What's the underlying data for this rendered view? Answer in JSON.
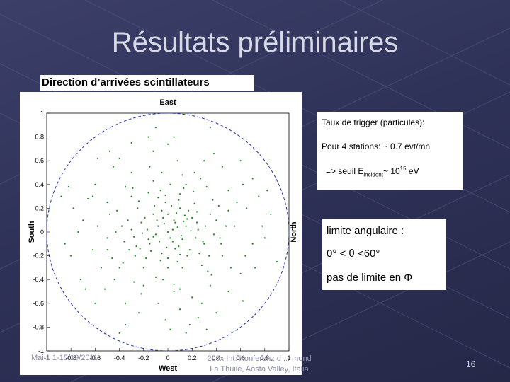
{
  "slide": {
    "title": "Résultats préliminaires",
    "subtitle": "Direction d’arrivées scintillateurs",
    "trigger_box": {
      "heading": "Taux de trigger (particules):",
      "stations_line": "Pour 4 stations: ~ 0.7 evt/mn",
      "seuil_prefix": "=> seuil E",
      "seuil_sub": "incident",
      "seuil_mid": "~ 10",
      "seuil_sup": "15",
      "seuil_unit": " eV"
    },
    "limits_box": {
      "line1": "limite angulaire :",
      "line2": "0° < θ <60°",
      "line3": "pas de limite en Φ"
    },
    "footer_date": "Mai 1 1-15/19/2011",
    "footer_conference": [
      "200x Int. Konferenz d ... mond",
      "La Thuile, Aosta Valley, Italia"
    ],
    "slide_number": "16"
  },
  "chart_data": {
    "type": "scatter",
    "title": "East",
    "xlabel": "West",
    "ylabel_left": "South",
    "ylabel_right": "North",
    "xlim": [
      -1,
      1
    ],
    "ylim": [
      -1,
      1
    ],
    "x_ticks": [
      "-1",
      "-0.8",
      "-0.6",
      "-0.4",
      "-0.2",
      "0",
      "0.2",
      "0.4",
      "0.6",
      "0.8",
      "1"
    ],
    "y_ticks": [
      "1",
      "0.8",
      "0.6",
      "0.4",
      "0.2",
      "0",
      "-0.2",
      "-0.4",
      "-0.6",
      "-0.8",
      "-1"
    ],
    "grid": false,
    "boundary": "unit circle (dashed)",
    "points_color": "#1e8a1e",
    "points": [
      [
        0.0,
        0.0
      ],
      [
        0.05,
        0.1
      ],
      [
        -0.08,
        0.05
      ],
      [
        0.12,
        -0.06
      ],
      [
        -0.15,
        -0.1
      ],
      [
        0.2,
        0.12
      ],
      [
        -0.05,
        -0.18
      ],
      [
        0.1,
        0.2
      ],
      [
        -0.22,
        0.08
      ],
      [
        0.18,
        -0.15
      ],
      [
        0.02,
        -0.05
      ],
      [
        -0.12,
        0.15
      ],
      [
        0.25,
        0.02
      ],
      [
        -0.02,
        0.25
      ],
      [
        0.08,
        -0.25
      ],
      [
        -0.28,
        -0.04
      ],
      [
        0.15,
        0.05
      ],
      [
        -0.1,
        -0.02
      ],
      [
        0.06,
        0.08
      ],
      [
        -0.04,
        0.12
      ],
      [
        0.3,
        -0.1
      ],
      [
        -0.18,
        -0.22
      ],
      [
        0.22,
        0.24
      ],
      [
        -0.25,
        0.2
      ],
      [
        0.0,
        -0.3
      ],
      [
        0.1,
        0.32
      ],
      [
        -0.32,
        -0.15
      ],
      [
        0.35,
        0.15
      ],
      [
        -0.06,
        0.35
      ],
      [
        0.28,
        -0.28
      ],
      [
        -0.3,
        0.3
      ],
      [
        0.04,
        0.02
      ],
      [
        -0.07,
        -0.08
      ],
      [
        0.13,
        0.09
      ],
      [
        -0.11,
        0.22
      ],
      [
        0.16,
        -0.2
      ],
      [
        -0.2,
        -0.3
      ],
      [
        0.24,
        0.08
      ],
      [
        -0.26,
        -0.12
      ],
      [
        0.09,
        -0.12
      ],
      [
        0.38,
        -0.02
      ],
      [
        -0.38,
        0.05
      ],
      [
        0.02,
        0.4
      ],
      [
        -0.04,
        -0.4
      ],
      [
        0.42,
        0.22
      ],
      [
        -0.4,
        -0.3
      ],
      [
        0.32,
        0.38
      ],
      [
        -0.35,
        0.38
      ],
      [
        0.36,
        -0.36
      ],
      [
        -0.28,
        -0.42
      ],
      [
        0.45,
        -0.2
      ],
      [
        -0.48,
        0.15
      ],
      [
        0.12,
        0.48
      ],
      [
        0.05,
        -0.5
      ],
      [
        0.5,
        0.35
      ],
      [
        -0.5,
        -0.05
      ],
      [
        0.55,
        0.05
      ],
      [
        -0.15,
        0.55
      ],
      [
        0.2,
        -0.55
      ],
      [
        -0.55,
        -0.3
      ],
      [
        0.6,
        -0.35
      ],
      [
        -0.6,
        0.4
      ],
      [
        0.3,
        0.6
      ],
      [
        -0.35,
        -0.6
      ],
      [
        0.65,
        0.2
      ],
      [
        -0.62,
        -0.15
      ],
      [
        0.1,
        -0.65
      ],
      [
        -0.12,
        0.68
      ],
      [
        0.7,
        -0.1
      ],
      [
        -0.7,
        0.1
      ],
      [
        0.45,
        0.55
      ],
      [
        -0.45,
        0.55
      ],
      [
        0.5,
        -0.5
      ],
      [
        -0.52,
        -0.48
      ],
      [
        0.75,
        0.3
      ],
      [
        -0.72,
        -0.4
      ],
      [
        0.25,
        -0.72
      ],
      [
        -0.3,
        0.75
      ],
      [
        0.8,
        -0.05
      ],
      [
        -0.78,
        0.2
      ],
      [
        0.05,
        0.8
      ],
      [
        0.02,
        -0.82
      ],
      [
        0.6,
        0.6
      ],
      [
        -0.58,
        0.62
      ],
      [
        0.62,
        -0.58
      ],
      [
        -0.6,
        -0.6
      ],
      [
        0.85,
        0.15
      ],
      [
        -0.85,
        -0.1
      ],
      [
        0.15,
        -0.85
      ],
      [
        -0.1,
        0.88
      ],
      [
        0.9,
        -0.25
      ],
      [
        -0.88,
        0.3
      ],
      [
        0.35,
        0.88
      ],
      [
        -0.4,
        -0.85
      ],
      [
        0.07,
        0.16
      ],
      [
        -0.16,
        -0.06
      ],
      [
        0.19,
        0.01
      ],
      [
        -0.01,
        -0.13
      ],
      [
        0.11,
        -0.03
      ],
      [
        -0.09,
        0.1
      ],
      [
        0.14,
        0.14
      ],
      [
        -0.14,
        -0.16
      ],
      [
        0.03,
        0.22
      ],
      [
        -0.21,
        -0.01
      ],
      [
        0.23,
        -0.05
      ],
      [
        0.0,
        0.15
      ],
      [
        -0.06,
        -0.24
      ],
      [
        0.17,
        0.18
      ],
      [
        -0.19,
        0.12
      ],
      [
        0.26,
        -0.18
      ],
      [
        -0.24,
        0.26
      ],
      [
        0.09,
        0.27
      ],
      [
        -0.27,
        -0.2
      ],
      [
        0.31,
        0.05
      ],
      [
        -0.08,
        0.29
      ],
      [
        0.12,
        -0.3
      ],
      [
        -0.33,
        0.1
      ],
      [
        0.34,
        -0.2
      ],
      [
        -0.16,
        0.33
      ],
      [
        0.21,
        0.34
      ],
      [
        -0.36,
        -0.08
      ],
      [
        0.4,
        0.1
      ],
      [
        -0.1,
        -0.38
      ],
      [
        0.15,
        0.4
      ],
      [
        -0.42,
        0.18
      ],
      [
        0.44,
        -0.1
      ],
      [
        -0.2,
        -0.45
      ],
      [
        0.27,
        0.45
      ],
      [
        -0.46,
        -0.22
      ],
      [
        0.48,
        0.05
      ],
      [
        -0.05,
        0.5
      ],
      [
        0.1,
        -0.48
      ],
      [
        -0.5,
        0.25
      ],
      [
        0.52,
        -0.3
      ],
      [
        -0.3,
        0.5
      ],
      [
        0.35,
        -0.45
      ],
      [
        -0.44,
        -0.4
      ],
      [
        0.57,
        0.25
      ],
      [
        -0.58,
        0.05
      ],
      [
        0.08,
        0.6
      ],
      [
        -0.08,
        -0.6
      ],
      [
        0.64,
        -0.2
      ],
      [
        -0.66,
        0.28
      ],
      [
        0.38,
        0.66
      ],
      [
        -0.24,
        -0.68
      ],
      [
        0.7,
        0.45
      ],
      [
        -0.68,
        -0.48
      ],
      [
        0.4,
        -0.68
      ],
      [
        -0.48,
        0.68
      ],
      [
        0.78,
        0.05
      ],
      [
        -0.8,
        -0.2
      ],
      [
        0.18,
        -0.78
      ],
      [
        -0.16,
        0.8
      ],
      [
        0.04,
        -0.08
      ],
      [
        -0.03,
        0.07
      ],
      [
        0.08,
        0.04
      ],
      [
        -0.12,
        -0.04
      ],
      [
        0.06,
        -0.14
      ],
      [
        -0.05,
        0.18
      ],
      [
        0.16,
        0.11
      ],
      [
        -0.17,
        0.02
      ],
      [
        0.1,
        -0.19
      ],
      [
        -0.23,
        -0.14
      ],
      [
        0.24,
        0.17
      ],
      [
        -0.02,
        0.31
      ],
      [
        0.29,
        -0.08
      ],
      [
        -0.3,
        0.02
      ],
      [
        0.0,
        -0.22
      ],
      [
        0.13,
        0.37
      ],
      [
        -0.37,
        -0.26
      ],
      [
        0.37,
        0.27
      ],
      [
        -0.29,
        0.37
      ],
      [
        0.33,
        -0.33
      ],
      [
        -0.12,
        0.43
      ],
      [
        0.43,
        -0.05
      ],
      [
        -0.43,
        0.0
      ],
      [
        0.05,
        -0.44
      ],
      [
        0.22,
        0.5
      ],
      [
        -0.5,
        -0.15
      ],
      [
        0.5,
        0.18
      ],
      [
        -0.22,
        -0.52
      ],
      [
        0.28,
        -0.6
      ],
      [
        -0.62,
        0.3
      ],
      [
        0.62,
        0.4
      ],
      [
        -0.4,
        0.62
      ],
      [
        0.72,
        -0.3
      ],
      [
        -0.74,
        0.0
      ],
      [
        0.0,
        0.74
      ],
      [
        -0.02,
        -0.74
      ],
      [
        0.82,
        0.35
      ],
      [
        -0.82,
        0.38
      ],
      [
        0.32,
        -0.82
      ],
      [
        -0.35,
        -0.78
      ]
    ]
  }
}
